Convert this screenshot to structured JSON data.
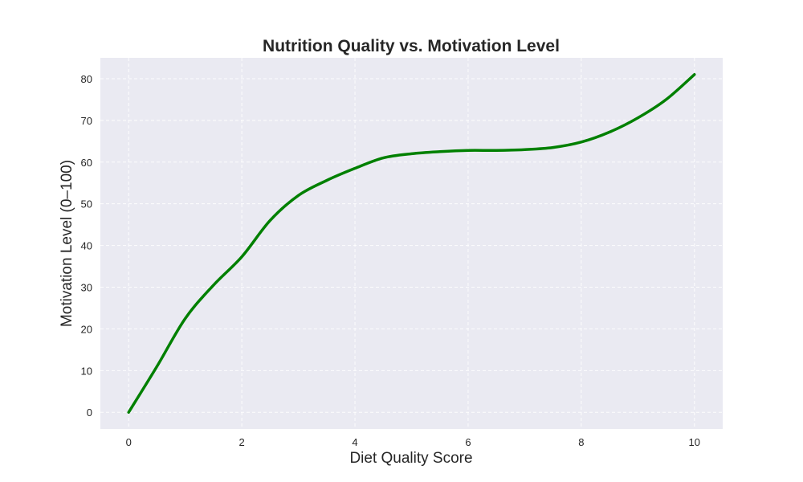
{
  "chart_data": {
    "type": "line",
    "title": "Nutrition Quality vs. Motivation Level",
    "xlabel": "Diet Quality Score",
    "ylabel": "Motivation Level (0–100)",
    "xlim": [
      -0.5,
      10.5
    ],
    "ylim": [
      -4,
      85
    ],
    "xticks": [
      0,
      2,
      4,
      6,
      8,
      10
    ],
    "yticks": [
      0,
      10,
      20,
      30,
      40,
      50,
      60,
      70,
      80
    ],
    "grid": true,
    "background_color": "#eaeaf2",
    "series": [
      {
        "color": "#008000",
        "x": [
          0,
          0.5,
          1,
          1.5,
          2,
          2.5,
          3,
          3.5,
          4,
          4.5,
          5,
          5.5,
          6,
          6.5,
          7,
          7.5,
          8,
          8.5,
          9,
          9.5,
          10
        ],
        "y": [
          0,
          11,
          22.5,
          30.5,
          37.3,
          46,
          52,
          55.6,
          58.5,
          61,
          62,
          62.5,
          62.8,
          62.8,
          63,
          63.5,
          64.8,
          67.2,
          70.6,
          75,
          81
        ]
      }
    ]
  }
}
